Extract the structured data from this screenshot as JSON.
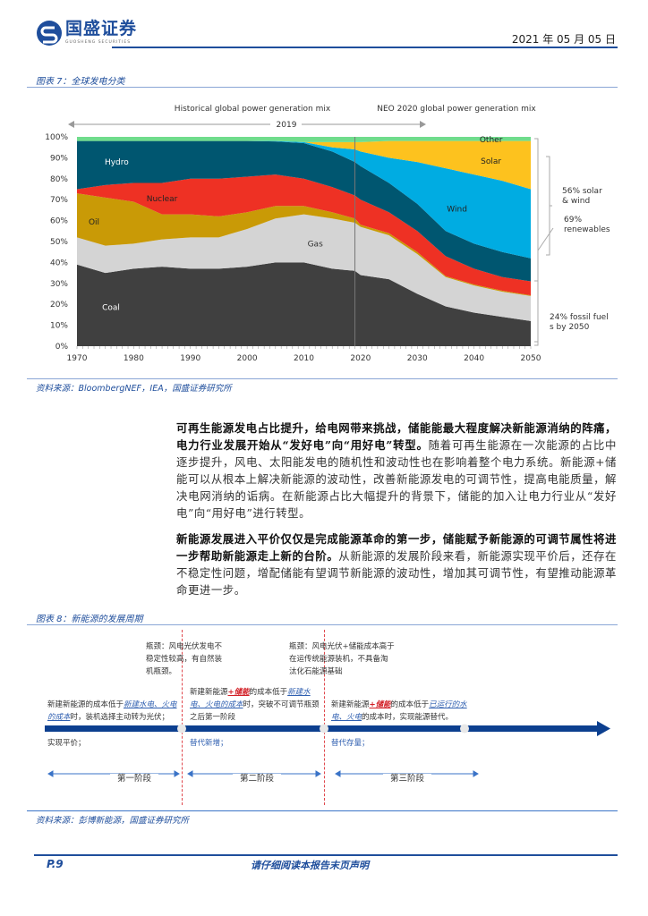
{
  "header": {
    "logo_text": "国盛证券",
    "logo_sub": "GUOSHENG SECURITIES",
    "date": "2021 年 05 月 05 日",
    "brand_color": "#1f4e9c"
  },
  "figure7": {
    "caption": "图表 7：全球发电分类",
    "source": "资料来源：BloombergNEF，IEA，国盛证券研究所"
  },
  "chart_data": {
    "type": "area",
    "stacked": true,
    "header_left": "Historical global power generation mix",
    "header_right": "NEO 2020  global power generation mix",
    "divider_label": "2019",
    "x": [
      1970,
      1975,
      1980,
      1985,
      1990,
      1995,
      2000,
      2005,
      2010,
      2015,
      2019,
      2020,
      2025,
      2030,
      2035,
      2040,
      2045,
      2050
    ],
    "xticks": [
      "1970",
      "1980",
      "1990",
      "2000",
      "2010",
      "2020",
      "2030",
      "2040",
      "2050"
    ],
    "yticks": [
      "0%",
      "10%",
      "20%",
      "30%",
      "40%",
      "50%",
      "60%",
      "70%",
      "80%",
      "90%",
      "100%"
    ],
    "ylim": [
      0,
      100
    ],
    "xlim": [
      1970,
      2050
    ],
    "series": [
      {
        "name": "Coal",
        "color": "#404040",
        "label_color": "#ffffff",
        "values": [
          39,
          35,
          37,
          38,
          37,
          37,
          38,
          40,
          40,
          37,
          36,
          34,
          32,
          25,
          19,
          16,
          14,
          12
        ]
      },
      {
        "name": "Gas",
        "color": "#d4d4d4",
        "label_color": "#333333",
        "values": [
          13,
          13,
          12,
          13,
          15,
          15,
          18,
          21,
          23,
          24,
          23,
          23,
          21,
          19,
          14,
          13,
          12,
          12
        ]
      },
      {
        "name": "Oil",
        "color": "#c99a06",
        "label_color": "#222222",
        "values": [
          21,
          23,
          20,
          12,
          11,
          10,
          8,
          6,
          4,
          3,
          2,
          1,
          1,
          1,
          0.5,
          0.5,
          0.5,
          0.3
        ]
      },
      {
        "name": "Nuclear",
        "color": "#ee3124",
        "label_color": "#222222",
        "values": [
          2,
          6,
          9,
          15,
          17,
          18,
          17,
          15,
          13,
          12,
          11,
          12,
          10,
          10,
          9.5,
          7.5,
          6.5,
          6.7
        ]
      },
      {
        "name": "Hydro",
        "color": "#005670",
        "label_color": "#ffffff",
        "values": [
          23,
          21,
          20,
          20,
          18,
          18,
          17,
          15.8,
          17,
          17,
          16,
          16,
          14,
          13,
          12,
          12,
          12,
          11
        ]
      },
      {
        "name": "Wind",
        "color": "#00ace2",
        "label_color": "#222222",
        "values": [
          0,
          0,
          0,
          0,
          0,
          0,
          0,
          0.2,
          0.5,
          2,
          6,
          7,
          12,
          20,
          30,
          33,
          34,
          33
        ]
      },
      {
        "name": "Solar",
        "color": "#fdc21e",
        "label_color": "#222222",
        "values": [
          0,
          0,
          0,
          0,
          0,
          0,
          0,
          0,
          0,
          2.5,
          3.5,
          4.5,
          8,
          10,
          13,
          16,
          19,
          23
        ]
      },
      {
        "name": "Other",
        "color": "#6fdc8c",
        "label_color": "#222222",
        "values": [
          2,
          2,
          2,
          2,
          2,
          2,
          2,
          2,
          2.5,
          2.5,
          2.5,
          2.5,
          2,
          2,
          2,
          2,
          2,
          2
        ]
      }
    ],
    "annotations": [
      "56% solar & wind",
      "69% renewables",
      "24% fossil fuels by 2050"
    ]
  },
  "body": {
    "p1_bold": "可再生能源发电占比提升，给电网带来挑战，储能能最大程度解决新能源消纳的阵痛，电力行业发展开始从“发好电”向“用好电”转型。",
    "p1_text": "随着可再生能源在一次能源的占比中逐步提升，风电、太阳能发电的随机性和波动性也在影响着整个电力系统。新能源+储能可以从根本上解决新能源的波动性，改善新能源发电的可调节性，提高电能质量，解决电网消纳的诟病。在新能源占比大幅提升的背景下，储能的加入让电力行业从“发好电”向“用好电”进行转型。",
    "p2_bold": "新能源发展进入平价仅仅是完成能源革命的第一步，储能赋予新能源的可调节属性将进一步帮助新能源走上新的台阶。",
    "p2_text": "从新能源的发展阶段来看，新能源实现平价后，还存在不稳定性问题，增配储能有望调节新能源的波动性，增加其可调节性，有望推动能源革命更进一步。"
  },
  "figure8": {
    "caption": "图表 8：新能源的发展周期",
    "source": "资料来源：彭博新能源，国盛证券研究所",
    "bottleneck1": "瓶颈：风电光伏发电不稳定性较高，有自然装机瓶颈。",
    "bottleneck2": "瓶颈：风电光伏+储能成本高于在运传统能源装机，不具备淘汰化石能源基础",
    "stage1": {
      "a": "新建新能源的成本低于",
      "b": "新建水电、火电的成本",
      "c": "时，装机选择主动转为光伏；",
      "below": "实现平价；",
      "label": "第一阶段"
    },
    "stage2": {
      "a": "新建新能源",
      "r": "+储能",
      "a2": "的成本低于",
      "b": "新建水电、火电的成本",
      "c": "时，突破不可调节瓶颈之后第一阶段",
      "below": "替代新增；",
      "label": "第二阶段"
    },
    "stage3": {
      "a": "新建新能源",
      "r": "+储能",
      "a2": "的成本低于",
      "b": "已运行的水电、火电",
      "c": "的成本时，实现能源替代。",
      "below": "替代存量；",
      "label": "第三阶段"
    }
  },
  "footer": {
    "page": "P.9",
    "notice": "请仔细阅读本报告末页声明"
  }
}
